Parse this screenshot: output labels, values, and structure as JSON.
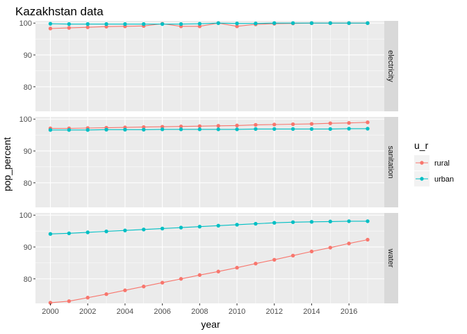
{
  "chart_data": {
    "type": "line",
    "title": "Kazakhstan data",
    "xlabel": "year",
    "ylabel": "pop_percent",
    "x": [
      2000,
      2001,
      2002,
      2003,
      2004,
      2005,
      2006,
      2007,
      2008,
      2009,
      2010,
      2011,
      2012,
      2013,
      2014,
      2015,
      2016,
      2017
    ],
    "x_ticks": [
      2000,
      2002,
      2004,
      2006,
      2008,
      2010,
      2012,
      2014,
      2016
    ],
    "y_ticks": [
      80,
      90,
      100
    ],
    "ylim": [
      72.3,
      100.7
    ],
    "facet_layout": "rows, strips on the right",
    "legend": {
      "title": "u_r",
      "position": "right"
    },
    "series_colors": {
      "rural": "#F8766D",
      "urban": "#00BFC4"
    },
    "panels": [
      {
        "facet": "electricity",
        "series": [
          {
            "name": "rural",
            "values": [
              98.3,
              98.5,
              98.7,
              98.9,
              99.0,
              99.1,
              99.8,
              99.0,
              99.0,
              100.0,
              99.0,
              99.6,
              99.8,
              99.9,
              100.0,
              100.0,
              100.0,
              100.0
            ]
          },
          {
            "name": "urban",
            "values": [
              99.8,
              99.7,
              99.7,
              99.7,
              99.7,
              99.7,
              99.7,
              99.7,
              99.8,
              100.0,
              99.9,
              99.9,
              100.0,
              100.0,
              100.0,
              100.0,
              100.0,
              100.0
            ]
          }
        ]
      },
      {
        "facet": "sanitation",
        "series": [
          {
            "name": "rural",
            "values": [
              97.1,
              97.1,
              97.2,
              97.3,
              97.4,
              97.5,
              97.6,
              97.7,
              97.8,
              97.9,
              98.0,
              98.2,
              98.3,
              98.4,
              98.5,
              98.7,
              98.8,
              99.0
            ]
          },
          {
            "name": "urban",
            "values": [
              96.6,
              96.6,
              96.6,
              96.7,
              96.7,
              96.7,
              96.8,
              96.8,
              96.8,
              96.8,
              96.8,
              96.9,
              96.9,
              96.9,
              96.9,
              96.9,
              97.0,
              97.0
            ]
          }
        ]
      },
      {
        "facet": "water",
        "series": [
          {
            "name": "rural",
            "values": [
              72.5,
              73.0,
              74.1,
              75.2,
              76.4,
              77.6,
              78.8,
              80.0,
              81.2,
              82.3,
              83.5,
              84.8,
              86.0,
              87.3,
              88.6,
              89.8,
              91.1,
              92.3
            ]
          },
          {
            "name": "urban",
            "values": [
              94.1,
              94.3,
              94.6,
              94.9,
              95.2,
              95.5,
              95.8,
              96.1,
              96.4,
              96.7,
              97.0,
              97.3,
              97.6,
              97.8,
              97.9,
              98.0,
              98.1,
              98.1
            ]
          }
        ]
      }
    ]
  }
}
